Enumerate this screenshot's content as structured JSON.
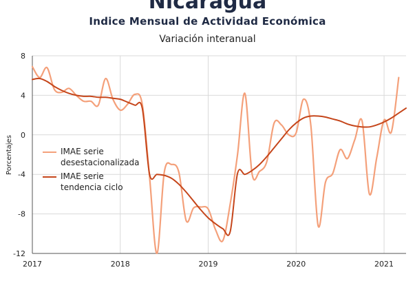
{
  "header": {
    "title": "Nicaragua",
    "subtitle": "Indice Mensual de  Actividad Económica",
    "subtitle2": "Variación interanual"
  },
  "colors": {
    "raw": "#f4a07a",
    "trend": "#c5451a",
    "grid": "#d9d9d9"
  },
  "chart_data": {
    "type": "line",
    "ylabel": "Porcentajes",
    "xlabel": "",
    "ylim": [
      -12,
      8
    ],
    "xlim": [
      "2017-01",
      "2021-04"
    ],
    "yticks": [
      8,
      4,
      0,
      -4,
      -8,
      -12
    ],
    "xticks": [
      "2017",
      "2018",
      "2019",
      "2020",
      "2021"
    ],
    "grid": true,
    "legend_position": "center-left",
    "series": [
      {
        "name": "IMAE serie desestacionalizada",
        "color": "#f4a07a",
        "points": [
          [
            "2017-01",
            6.9
          ],
          [
            "2017-02",
            5.8
          ],
          [
            "2017-03",
            6.8
          ],
          [
            "2017-04",
            4.6
          ],
          [
            "2017-05",
            4.3
          ],
          [
            "2017-06",
            4.7
          ],
          [
            "2017-07",
            4.0
          ],
          [
            "2017-08",
            3.4
          ],
          [
            "2017-09",
            3.4
          ],
          [
            "2017-10",
            3.0
          ],
          [
            "2017-11",
            5.7
          ],
          [
            "2017-12",
            3.6
          ],
          [
            "2018-01",
            2.5
          ],
          [
            "2018-02",
            3.1
          ],
          [
            "2018-03",
            4.1
          ],
          [
            "2018-04",
            3.1
          ],
          [
            "2018-05",
            -4.3
          ],
          [
            "2018-06",
            -12.0
          ],
          [
            "2018-07",
            -3.8
          ],
          [
            "2018-08",
            -3.0
          ],
          [
            "2018-09",
            -3.8
          ],
          [
            "2018-10",
            -8.7
          ],
          [
            "2018-11",
            -7.4
          ],
          [
            "2018-12",
            -7.3
          ],
          [
            "2019-01",
            -7.5
          ],
          [
            "2019-02",
            -9.6
          ],
          [
            "2019-03",
            -10.7
          ],
          [
            "2019-04",
            -7.0
          ],
          [
            "2019-05",
            -2.0
          ],
          [
            "2019-06",
            4.2
          ],
          [
            "2019-07",
            -4.0
          ],
          [
            "2019-08",
            -3.7
          ],
          [
            "2019-09",
            -2.7
          ],
          [
            "2019-10",
            1.2
          ],
          [
            "2019-11",
            1.0
          ],
          [
            "2019-12",
            0.0
          ],
          [
            "2020-01",
            0.2
          ],
          [
            "2020-02",
            3.6
          ],
          [
            "2020-03",
            1.0
          ],
          [
            "2020-04",
            -9.2
          ],
          [
            "2020-05",
            -4.8
          ],
          [
            "2020-06",
            -3.9
          ],
          [
            "2020-07",
            -1.5
          ],
          [
            "2020-08",
            -2.4
          ],
          [
            "2020-09",
            -0.5
          ],
          [
            "2020-10",
            1.4
          ],
          [
            "2020-11",
            -6.0
          ],
          [
            "2020-12",
            -2.3
          ],
          [
            "2021-01",
            1.5
          ],
          [
            "2021-02",
            0.3
          ],
          [
            "2021-03",
            5.8
          ]
        ]
      },
      {
        "name": "IMAE serie tendencia ciclo",
        "color": "#c5451a",
        "points": [
          [
            "2017-01",
            5.6
          ],
          [
            "2017-02",
            5.7
          ],
          [
            "2017-03",
            5.4
          ],
          [
            "2017-04",
            4.9
          ],
          [
            "2017-05",
            4.5
          ],
          [
            "2017-06",
            4.2
          ],
          [
            "2017-07",
            4.0
          ],
          [
            "2017-08",
            3.9
          ],
          [
            "2017-09",
            3.9
          ],
          [
            "2017-10",
            3.8
          ],
          [
            "2017-11",
            3.8
          ],
          [
            "2017-12",
            3.7
          ],
          [
            "2018-01",
            3.6
          ],
          [
            "2018-02",
            3.3
          ],
          [
            "2018-03",
            3.0
          ],
          [
            "2018-04",
            2.7
          ],
          [
            "2018-05",
            -4.0
          ],
          [
            "2018-06",
            -4.0
          ],
          [
            "2018-07",
            -4.1
          ],
          [
            "2018-08",
            -4.4
          ],
          [
            "2018-09",
            -5.0
          ],
          [
            "2018-10",
            -5.8
          ],
          [
            "2018-11",
            -6.7
          ],
          [
            "2018-12",
            -7.6
          ],
          [
            "2019-01",
            -8.4
          ],
          [
            "2019-02",
            -9.0
          ],
          [
            "2019-03",
            -9.5
          ],
          [
            "2019-04",
            -9.8
          ],
          [
            "2019-05",
            -3.9
          ],
          [
            "2019-06",
            -4.0
          ],
          [
            "2019-07",
            -3.6
          ],
          [
            "2019-08",
            -3.0
          ],
          [
            "2019-09",
            -2.2
          ],
          [
            "2019-10",
            -1.3
          ],
          [
            "2019-11",
            -0.4
          ],
          [
            "2019-12",
            0.5
          ],
          [
            "2020-01",
            1.2
          ],
          [
            "2020-02",
            1.7
          ],
          [
            "2020-03",
            1.9
          ],
          [
            "2020-04",
            1.9
          ],
          [
            "2020-05",
            1.8
          ],
          [
            "2020-06",
            1.6
          ],
          [
            "2020-07",
            1.4
          ],
          [
            "2020-08",
            1.1
          ],
          [
            "2020-09",
            0.9
          ],
          [
            "2020-10",
            0.8
          ],
          [
            "2020-11",
            0.8
          ],
          [
            "2020-12",
            1.0
          ],
          [
            "2021-01",
            1.3
          ],
          [
            "2021-02",
            1.7
          ],
          [
            "2021-03",
            2.2
          ],
          [
            "2021-04",
            2.7
          ]
        ]
      }
    ]
  },
  "legend": {
    "raw_line1": "IMAE serie",
    "raw_line2": "desestacionalizada",
    "trend_line1": "IMAE serie",
    "trend_line2": "tendencia ciclo"
  }
}
